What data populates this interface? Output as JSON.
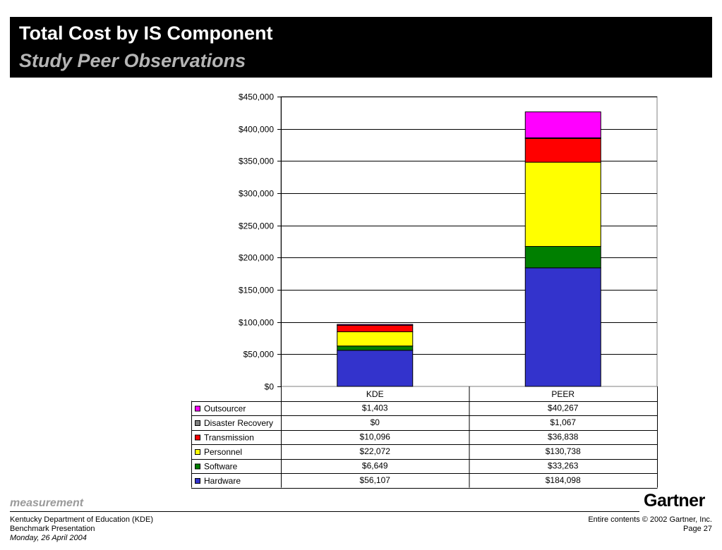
{
  "header": {
    "title": "Total Cost by IS Component",
    "subtitle": "Study Peer Observations"
  },
  "chart_data": {
    "type": "bar",
    "stacked": true,
    "categories": [
      "KDE",
      "PEER"
    ],
    "series": [
      {
        "name": "Hardware",
        "color": "#3333CC",
        "values": [
          56107,
          184098
        ],
        "labels": [
          "$56,107",
          "$184,098"
        ]
      },
      {
        "name": "Software",
        "color": "#007F00",
        "values": [
          6649,
          33263
        ],
        "labels": [
          "$6,649",
          "$33,263"
        ]
      },
      {
        "name": "Personnel",
        "color": "#FFFF00",
        "values": [
          22072,
          130738
        ],
        "labels": [
          "$22,072",
          "$130,738"
        ]
      },
      {
        "name": "Transmission",
        "color": "#FF0000",
        "values": [
          10096,
          36838
        ],
        "labels": [
          "$10,096",
          "$36,838"
        ]
      },
      {
        "name": "Disaster Recovery",
        "color": "#808080",
        "values": [
          0,
          1067
        ],
        "labels": [
          "$0",
          "$1,067"
        ]
      },
      {
        "name": "Outsourcer",
        "color": "#FF00FF",
        "values": [
          1403,
          40267
        ],
        "labels": [
          "$1,403",
          "$40,267"
        ]
      }
    ],
    "table_order": [
      "Outsourcer",
      "Disaster Recovery",
      "Transmission",
      "Personnel",
      "Software",
      "Hardware"
    ],
    "ylim": [
      0,
      450000
    ],
    "yticks": [
      0,
      50000,
      100000,
      150000,
      200000,
      250000,
      300000,
      350000,
      400000,
      450000
    ],
    "ytick_labels": [
      "$0",
      "$50,000",
      "$100,000",
      "$150,000",
      "$200,000",
      "$250,000",
      "$300,000",
      "$350,000",
      "$400,000",
      "$450,000"
    ],
    "grid": true,
    "legend": "data-table",
    "title": "",
    "xlabel": "",
    "ylabel": ""
  },
  "footer": {
    "section": "measurement",
    "org": "Kentucky Department of Education (KDE)",
    "doc": "Benchmark Presentation",
    "date": "Monday, 26 April 2004",
    "logo": "Gartner",
    "copyright": "Entire contents © 2002 Gartner, Inc.",
    "page": "Page 27"
  }
}
